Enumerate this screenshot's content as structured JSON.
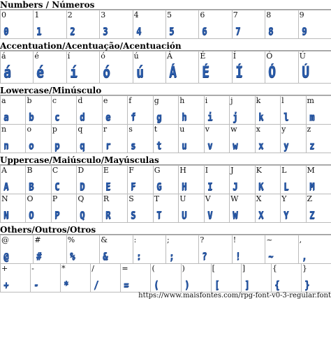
{
  "sections": [
    {
      "title": "Numbers / Números",
      "rows": [
        [
          "0",
          "1",
          "2",
          "3",
          "4",
          "5",
          "6",
          "7",
          "8",
          "9"
        ]
      ]
    },
    {
      "title": "Accentuation/Acentuação/Acentuación",
      "rows": [
        [
          "á",
          "é",
          "í",
          "ó",
          "ú",
          "Á",
          "É",
          "Í",
          "Ó",
          "Ú"
        ]
      ]
    },
    {
      "title": "Lowercase/Minúsculo",
      "rows": [
        [
          "a",
          "b",
          "c",
          "d",
          "e",
          "f",
          "g",
          "h",
          "i",
          "j",
          "k",
          "l",
          "m"
        ],
        [
          "n",
          "o",
          "p",
          "q",
          "r",
          "s",
          "t",
          "u",
          "v",
          "w",
          "x",
          "y",
          "z"
        ]
      ]
    },
    {
      "title": "Uppercase/Maiúsculo/Mayúsculas",
      "rows": [
        [
          "A",
          "B",
          "C",
          "D",
          "E",
          "F",
          "G",
          "H",
          "I",
          "J",
          "K",
          "L",
          "M"
        ],
        [
          "N",
          "O",
          "P",
          "Q",
          "R",
          "S",
          "T",
          "U",
          "V",
          "W",
          "X",
          "Y",
          "Z"
        ]
      ]
    },
    {
      "title": "Others/Outros/Otros",
      "rows": [
        [
          "@",
          "#",
          "%",
          "&",
          ":",
          ";",
          "?",
          "!",
          "~",
          ","
        ],
        [
          "+",
          "-",
          "*",
          "/",
          "=",
          "(",
          ")",
          "[",
          "]",
          "{",
          "}"
        ]
      ]
    }
  ],
  "footer": {
    "url": "https://www.maisfontes.com/rpg-font-v0-3-regular.font"
  }
}
